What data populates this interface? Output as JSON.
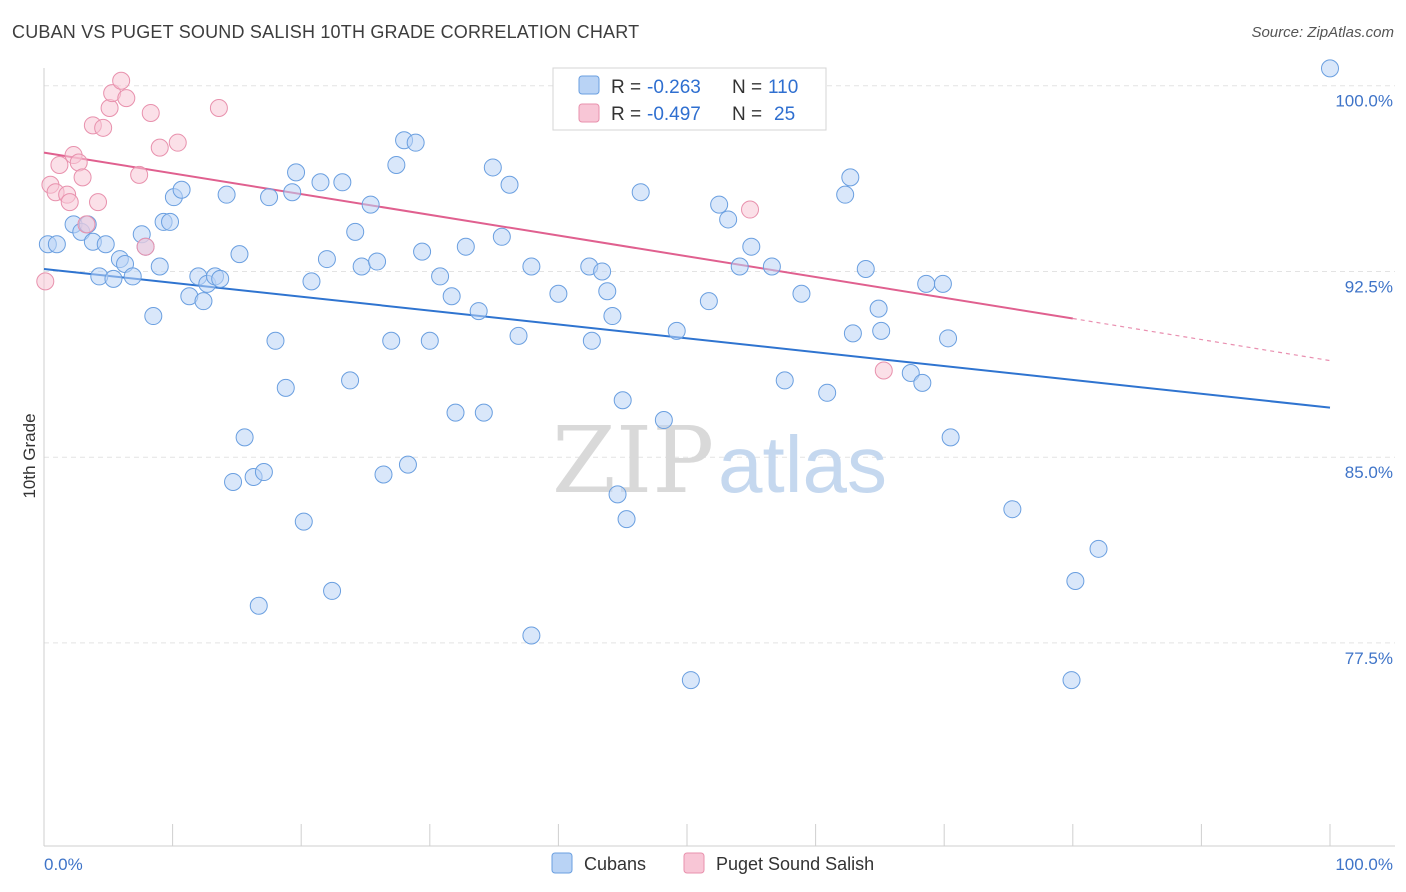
{
  "title": "CUBAN VS PUGET SOUND SALISH 10TH GRADE CORRELATION CHART",
  "source": "Source: ZipAtlas.com",
  "watermark": {
    "part1": "ZIP",
    "part2": "atlas"
  },
  "legend_box": {
    "rows": [
      {
        "r_label": "R =",
        "r_value": "-0.263",
        "n_label": "N =",
        "n_value": "110",
        "swatch_fill": "#b9d3f5",
        "swatch_stroke": "#6a9fe0"
      },
      {
        "r_label": "R =",
        "r_value": "-0.497",
        "n_label": "N =",
        "n_value": "25",
        "swatch_fill": "#f8c6d6",
        "swatch_stroke": "#e891ad"
      }
    ]
  },
  "chart_data": {
    "type": "scatter",
    "title": "CUBAN VS PUGET SOUND SALISH 10TH GRADE CORRELATION CHART",
    "xlabel": "",
    "ylabel": "10th Grade",
    "xlim": [
      0,
      100
    ],
    "ylim": [
      69.3,
      101.2
    ],
    "x_tick_labels": [
      {
        "value": 0,
        "label": "0.0%"
      },
      {
        "value": 100,
        "label": "100.0%"
      }
    ],
    "y_ticks": [
      {
        "value": 100,
        "label": "100.0%"
      },
      {
        "value": 92.5,
        "label": "92.5%"
      },
      {
        "value": 85,
        "label": "85.0%"
      },
      {
        "value": 77.5,
        "label": "77.5%"
      }
    ],
    "grid": "horizontal dashed",
    "legend_position": "bottom-center",
    "colors": {
      "cubans": "#6a9fe0",
      "cubans_fill": "#b9d3f5",
      "salish": "#e891ad",
      "salish_fill": "#f8c6d6",
      "cubans_line": "#2f74d0",
      "salish_line": "#e0608f",
      "tick_label": "#3f74c8"
    },
    "series": [
      {
        "name": "Cubans",
        "points": [
          [
            0.3,
            93.6
          ],
          [
            1.0,
            93.6
          ],
          [
            2.3,
            94.4
          ],
          [
            2.9,
            94.1
          ],
          [
            3.4,
            94.4
          ],
          [
            3.8,
            93.7
          ],
          [
            4.3,
            92.3
          ],
          [
            4.8,
            93.6
          ],
          [
            5.4,
            92.2
          ],
          [
            5.9,
            93.0
          ],
          [
            6.3,
            92.8
          ],
          [
            6.9,
            92.3
          ],
          [
            7.6,
            94.0
          ],
          [
            7.9,
            93.5
          ],
          [
            8.5,
            90.7
          ],
          [
            9.0,
            92.7
          ],
          [
            9.3,
            94.5
          ],
          [
            9.8,
            94.5
          ],
          [
            10.1,
            95.5
          ],
          [
            10.7,
            95.8
          ],
          [
            11.3,
            91.5
          ],
          [
            12.0,
            92.3
          ],
          [
            12.4,
            91.3
          ],
          [
            12.7,
            92.0
          ],
          [
            13.3,
            92.3
          ],
          [
            13.7,
            92.2
          ],
          [
            14.2,
            95.6
          ],
          [
            14.7,
            84.0
          ],
          [
            15.2,
            93.2
          ],
          [
            15.6,
            85.8
          ],
          [
            16.3,
            84.2
          ],
          [
            16.7,
            79.0
          ],
          [
            17.1,
            84.4
          ],
          [
            17.5,
            95.5
          ],
          [
            18.0,
            89.7
          ],
          [
            18.8,
            87.8
          ],
          [
            19.3,
            95.7
          ],
          [
            19.6,
            96.5
          ],
          [
            20.2,
            82.4
          ],
          [
            20.8,
            92.1
          ],
          [
            21.5,
            96.1
          ],
          [
            22.0,
            93.0
          ],
          [
            22.4,
            79.6
          ],
          [
            23.2,
            96.1
          ],
          [
            23.8,
            88.1
          ],
          [
            24.2,
            94.1
          ],
          [
            24.7,
            92.7
          ],
          [
            25.4,
            95.2
          ],
          [
            25.9,
            92.9
          ],
          [
            26.4,
            84.3
          ],
          [
            27.0,
            89.7
          ],
          [
            27.4,
            96.8
          ],
          [
            28.0,
            97.8
          ],
          [
            28.3,
            84.7
          ],
          [
            28.9,
            97.7
          ],
          [
            29.4,
            93.3
          ],
          [
            30.0,
            89.7
          ],
          [
            30.8,
            92.3
          ],
          [
            31.7,
            91.5
          ],
          [
            32.0,
            86.8
          ],
          [
            32.8,
            93.5
          ],
          [
            33.8,
            90.9
          ],
          [
            34.2,
            86.8
          ],
          [
            34.9,
            96.7
          ],
          [
            35.6,
            93.9
          ],
          [
            36.2,
            96.0
          ],
          [
            36.9,
            89.9
          ],
          [
            37.9,
            77.8
          ],
          [
            37.9,
            92.7
          ],
          [
            40.0,
            91.6
          ],
          [
            42.4,
            92.7
          ],
          [
            42.6,
            89.7
          ],
          [
            43.4,
            92.5
          ],
          [
            43.8,
            91.7
          ],
          [
            44.2,
            90.7
          ],
          [
            44.6,
            83.5
          ],
          [
            45.0,
            87.3
          ],
          [
            45.3,
            82.5
          ],
          [
            46.4,
            95.7
          ],
          [
            48.2,
            86.5
          ],
          [
            49.2,
            90.1
          ],
          [
            50.3,
            76.0
          ],
          [
            51.7,
            91.3
          ],
          [
            52.5,
            95.2
          ],
          [
            53.2,
            94.6
          ],
          [
            54.1,
            92.7
          ],
          [
            55.0,
            93.5
          ],
          [
            56.6,
            92.7
          ],
          [
            57.6,
            88.1
          ],
          [
            58.9,
            91.6
          ],
          [
            60.9,
            87.6
          ],
          [
            62.3,
            95.6
          ],
          [
            62.7,
            96.3
          ],
          [
            62.9,
            90.0
          ],
          [
            63.9,
            92.6
          ],
          [
            64.9,
            91.0
          ],
          [
            65.1,
            90.1
          ],
          [
            67.4,
            88.4
          ],
          [
            68.3,
            88.0
          ],
          [
            68.6,
            92.0
          ],
          [
            69.9,
            92.0
          ],
          [
            70.3,
            89.8
          ],
          [
            70.5,
            85.8
          ],
          [
            75.3,
            82.9
          ],
          [
            80.2,
            80.0
          ],
          [
            79.9,
            76.0
          ],
          [
            82.0,
            81.3
          ],
          [
            100.0,
            100.7
          ]
        ],
        "trend": {
          "x": [
            0,
            100
          ],
          "y": [
            92.6,
            87.0
          ]
        }
      },
      {
        "name": "Puget Sound Salish",
        "points": [
          [
            0.1,
            92.1
          ],
          [
            0.5,
            96.0
          ],
          [
            0.9,
            95.7
          ],
          [
            1.2,
            96.8
          ],
          [
            1.8,
            95.6
          ],
          [
            2.0,
            95.3
          ],
          [
            2.3,
            97.2
          ],
          [
            2.7,
            96.9
          ],
          [
            3.0,
            96.3
          ],
          [
            3.3,
            94.4
          ],
          [
            3.8,
            98.4
          ],
          [
            4.2,
            95.3
          ],
          [
            4.6,
            98.3
          ],
          [
            5.1,
            99.1
          ],
          [
            5.3,
            99.7
          ],
          [
            6.0,
            100.2
          ],
          [
            6.4,
            99.5
          ],
          [
            7.4,
            96.4
          ],
          [
            7.9,
            93.5
          ],
          [
            8.3,
            98.9
          ],
          [
            9.0,
            97.5
          ],
          [
            10.4,
            97.7
          ],
          [
            13.6,
            99.1
          ],
          [
            54.9,
            95.0
          ],
          [
            65.3,
            88.5
          ]
        ],
        "trend": {
          "x": [
            0,
            80
          ],
          "y": [
            97.3,
            90.6
          ]
        },
        "trend_dashed": {
          "x": [
            80,
            100
          ],
          "y": [
            90.6,
            88.9
          ]
        }
      }
    ]
  },
  "bottom_legend": [
    {
      "label": "Cubans",
      "swatch_fill": "#b9d3f5",
      "swatch_stroke": "#6a9fe0"
    },
    {
      "label": "Puget Sound Salish",
      "swatch_fill": "#f8c6d6",
      "swatch_stroke": "#e891ad"
    }
  ]
}
